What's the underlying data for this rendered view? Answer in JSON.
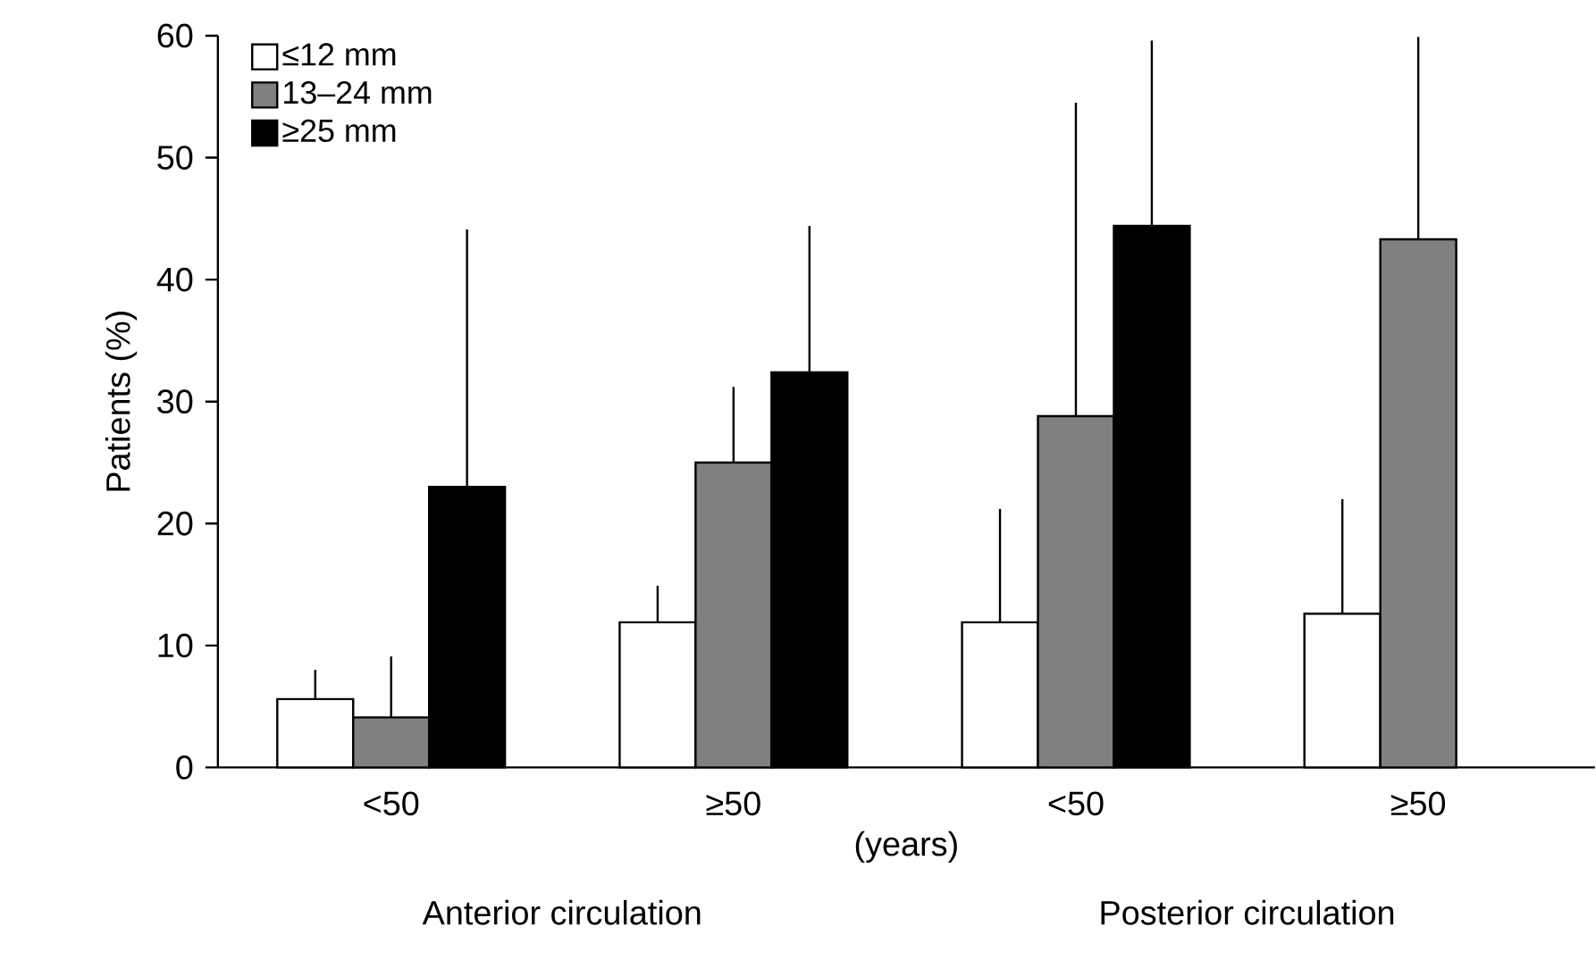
{
  "chart_data": {
    "type": "bar",
    "categories": [
      "<50",
      "≥50",
      "<50",
      "≥50"
    ],
    "xlabel": "(years)",
    "ylabel": "Patients (%)",
    "series": [
      {
        "name": "≤12 mm",
        "color": "#ffffff",
        "values": [
          5.6,
          11.9,
          11.9,
          12.6
        ],
        "errors": [
          [
            5.6,
            8.0
          ],
          [
            11.9,
            14.9
          ],
          [
            11.9,
            21.2
          ],
          [
            12.6,
            22.0
          ]
        ]
      },
      {
        "name": "13–24 mm",
        "color": "#808080",
        "values": [
          4.1,
          25.0,
          28.8,
          43.3
        ],
        "errors": [
          [
            4.1,
            9.1
          ],
          [
            25.0,
            31.2
          ],
          [
            28.8,
            54.5
          ],
          [
            43.3,
            59.9
          ]
        ]
      },
      {
        "name": "≥25 mm",
        "color": "#000000",
        "values": [
          23.0,
          32.4,
          44.4,
          null
        ],
        "errors": [
          [
            23.0,
            44.1
          ],
          [
            32.4,
            44.4
          ],
          [
            44.4,
            59.6
          ],
          null
        ]
      }
    ],
    "ylim": [
      0,
      60
    ],
    "yticks": [
      0,
      10,
      20,
      30,
      40,
      50,
      60
    ],
    "legend": "top left",
    "grid": false,
    "annotations": [
      "Anterior circulation",
      "Posterior circulation"
    ]
  }
}
